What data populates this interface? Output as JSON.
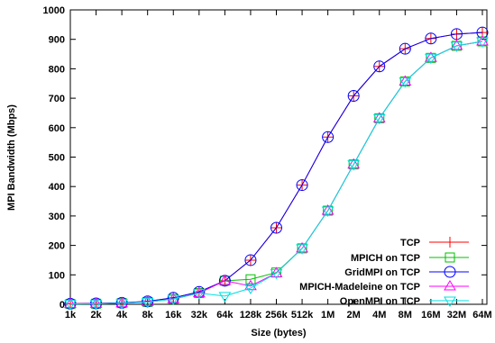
{
  "chart_data": {
    "type": "line",
    "title": "",
    "xlabel": "Size (bytes)",
    "ylabel": "MPI Bandwidth (Mbps)",
    "x_scale": "log2",
    "categories": [
      "1k",
      "2k",
      "4k",
      "8k",
      "16k",
      "32k",
      "64k",
      "128k",
      "256k",
      "512k",
      "1M",
      "2M",
      "4M",
      "8M",
      "16M",
      "32M",
      "64M"
    ],
    "yticks": [
      0,
      100,
      200,
      300,
      400,
      500,
      600,
      700,
      800,
      900,
      1000
    ],
    "ylim": [
      0,
      1000
    ],
    "grid": false,
    "legend_position": "bottom-right",
    "series": [
      {
        "name": "TCP",
        "color": "#ff0000",
        "marker": "plus",
        "values": [
          2,
          3,
          5,
          10,
          22,
          42,
          80,
          150,
          260,
          405,
          568,
          708,
          808,
          868,
          903,
          918,
          923
        ]
      },
      {
        "name": "MPICH on TCP",
        "color": "#00c000",
        "marker": "square",
        "values": [
          1,
          2,
          4,
          8,
          18,
          38,
          80,
          85,
          108,
          190,
          318,
          475,
          632,
          757,
          837,
          878,
          893
        ]
      },
      {
        "name": "GridMPI on TCP",
        "color": "#0000ff",
        "marker": "circle",
        "values": [
          2,
          3,
          5,
          10,
          22,
          42,
          80,
          150,
          260,
          405,
          568,
          708,
          808,
          868,
          903,
          918,
          923
        ]
      },
      {
        "name": "MPICH-Madeleine on TCP",
        "color": "#ff00ff",
        "marker": "triangle-up",
        "values": [
          1,
          2,
          4,
          8,
          18,
          38,
          80,
          62,
          106,
          190,
          318,
          475,
          632,
          757,
          837,
          878,
          893
        ]
      },
      {
        "name": "OpenMPI on TCP",
        "color": "#00e0e0",
        "marker": "triangle-down",
        "values": [
          1,
          2,
          4,
          8,
          18,
          38,
          28,
          55,
          106,
          190,
          318,
          475,
          632,
          757,
          837,
          878,
          893
        ]
      }
    ]
  }
}
